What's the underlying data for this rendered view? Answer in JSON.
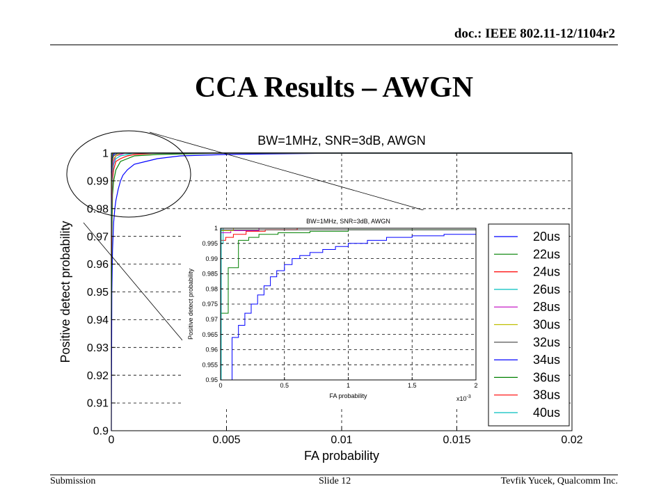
{
  "header": {
    "doc": "doc.: IEEE 802.11-12/1104r2"
  },
  "slide": {
    "title": "CCA Results – AWGN"
  },
  "footer": {
    "left": "Submission",
    "center": "Slide 12",
    "right": "Tevfik Yucek, Qualcomm Inc."
  },
  "colors": {
    "20us": "#0000ff",
    "22us": "#008000",
    "24us": "#ff0000",
    "26us": "#00bfbf",
    "28us": "#bf00bf",
    "30us": "#bfbf00",
    "32us": "#404040",
    "34us": "#0000ff",
    "36us": "#008000",
    "38us": "#ff0000",
    "40us": "#00bfbf"
  },
  "chart_data": [
    {
      "type": "line",
      "title": "BW=1MHz, SNR=3dB, AWGN",
      "xlabel": "FA probability",
      "ylabel": "Positive detect probability",
      "xlim": [
        0,
        0.02
      ],
      "ylim": [
        0.9,
        1
      ],
      "xticks": [
        "0",
        "0.005",
        "0.01",
        "0.015",
        "0.02"
      ],
      "yticks": [
        "0.9",
        "0.91",
        "0.92",
        "0.93",
        "0.94",
        "0.95",
        "0.96",
        "0.97",
        "0.98",
        "0.99",
        "1"
      ],
      "grid": true,
      "legend": "right",
      "series": [
        {
          "name": "20us",
          "x": [
            0,
            2e-05,
            5e-05,
            0.0001,
            0.00015,
            0.0002,
            0.0003,
            0.0004,
            0.0005,
            0.0007,
            0.001,
            0.0015,
            0.002,
            0.003,
            0.005,
            0.01,
            0.02
          ],
          "y": [
            0.9,
            0.95,
            0.965,
            0.975,
            0.98,
            0.983,
            0.987,
            0.99,
            0.992,
            0.994,
            0.996,
            0.997,
            0.998,
            0.999,
            0.9995,
            1,
            1
          ]
        },
        {
          "name": "22us",
          "x": [
            0,
            2e-05,
            5e-05,
            0.0001,
            0.0002,
            0.0004,
            0.0007,
            0.001,
            0.002,
            0.005,
            0.02
          ],
          "y": [
            0.94,
            0.97,
            0.985,
            0.99,
            0.994,
            0.997,
            0.998,
            0.999,
            0.9995,
            1,
            1
          ]
        },
        {
          "name": "24us",
          "x": [
            0,
            2e-05,
            5e-05,
            0.0001,
            0.0002,
            0.0004,
            0.0007,
            0.001,
            0.002,
            0.02
          ],
          "y": [
            0.96,
            0.98,
            0.99,
            0.994,
            0.997,
            0.998,
            0.999,
            0.9995,
            1,
            1
          ]
        },
        {
          "name": "26us",
          "x": [
            0,
            2e-05,
            5e-05,
            0.0001,
            0.0002,
            0.0004,
            0.0007,
            0.001,
            0.02
          ],
          "y": [
            0.97,
            0.985,
            0.993,
            0.996,
            0.998,
            0.999,
            0.9995,
            1,
            1
          ]
        },
        {
          "name": "28us",
          "x": [
            0,
            2e-05,
            5e-05,
            0.0001,
            0.0002,
            0.0004,
            0.0006,
            0.02
          ],
          "y": [
            0.98,
            0.99,
            0.995,
            0.997,
            0.999,
            0.9995,
            1,
            1
          ]
        },
        {
          "name": "30us",
          "x": [
            0,
            2e-05,
            5e-05,
            0.0001,
            0.0002,
            0.0004,
            0.02
          ],
          "y": [
            0.985,
            0.993,
            0.997,
            0.998,
            0.999,
            1,
            1
          ]
        },
        {
          "name": "32us",
          "x": [
            0,
            2e-05,
            5e-05,
            0.0001,
            0.0002,
            0.0003,
            0.02
          ],
          "y": [
            0.99,
            0.995,
            0.998,
            0.999,
            0.9995,
            1,
            1
          ]
        },
        {
          "name": "34us",
          "x": [
            0,
            2e-05,
            5e-05,
            0.0001,
            0.0002,
            0.02
          ],
          "y": [
            0.993,
            0.997,
            0.999,
            0.9995,
            1,
            1
          ]
        },
        {
          "name": "36us",
          "x": [
            0,
            2e-05,
            5e-05,
            0.0001,
            0.02
          ],
          "y": [
            0.995,
            0.998,
            0.9995,
            1,
            1
          ]
        },
        {
          "name": "38us",
          "x": [
            0,
            2e-05,
            5e-05,
            0.02
          ],
          "y": [
            0.997,
            0.999,
            1,
            1
          ]
        },
        {
          "name": "40us",
          "x": [
            0,
            2e-05,
            0.02
          ],
          "y": [
            0.998,
            1,
            1
          ]
        }
      ]
    },
    {
      "type": "line",
      "title": "BW=1MHz, SNR=3dB, AWGN",
      "xlabel": "FA probability",
      "ylabel": "Positive detect probability",
      "xlim": [
        0,
        2
      ],
      "x_multiplier": "x10",
      "x_multiplier_exp": "-3",
      "ylim": [
        0.95,
        1
      ],
      "xticks": [
        "0",
        "0.5",
        "1",
        "1.5",
        "2"
      ],
      "yticks": [
        "0.95",
        "0.955",
        "0.96",
        "0.965",
        "0.97",
        "0.975",
        "0.98",
        "0.985",
        "0.99",
        "0.995",
        "1"
      ],
      "grid": true,
      "series": [
        {
          "name": "20us",
          "x": [
            0,
            0.09,
            0.09,
            0.14,
            0.14,
            0.19,
            0.19,
            0.24,
            0.24,
            0.29,
            0.29,
            0.34,
            0.34,
            0.39,
            0.39,
            0.44,
            0.44,
            0.5,
            0.5,
            0.56,
            0.56,
            0.62,
            0.62,
            0.7,
            0.7,
            0.8,
            0.8,
            0.9,
            0.9,
            1.0,
            1.0,
            1.15,
            1.15,
            1.3,
            1.3,
            1.5,
            1.5,
            1.75,
            1.75,
            2.0
          ],
          "y": [
            0.95,
            0.95,
            0.964,
            0.964,
            0.968,
            0.968,
            0.972,
            0.972,
            0.975,
            0.975,
            0.978,
            0.978,
            0.981,
            0.981,
            0.984,
            0.984,
            0.986,
            0.986,
            0.988,
            0.988,
            0.99,
            0.99,
            0.991,
            0.991,
            0.992,
            0.992,
            0.993,
            0.993,
            0.994,
            0.994,
            0.995,
            0.995,
            0.996,
            0.996,
            0.997,
            0.997,
            0.9975,
            0.9975,
            0.998,
            0.998
          ]
        },
        {
          "name": "22us",
          "x": [
            0,
            0.06,
            0.06,
            0.14,
            0.14,
            0.22,
            0.22,
            0.3,
            0.3,
            0.45,
            0.45,
            0.7,
            0.7,
            1.0,
            1.0,
            2.0
          ],
          "y": [
            0.972,
            0.972,
            0.987,
            0.987,
            0.996,
            0.996,
            0.997,
            0.997,
            0.998,
            0.998,
            0.9985,
            0.9985,
            0.999,
            0.999,
            0.9995,
            0.9995
          ]
        },
        {
          "name": "24us",
          "x": [
            0,
            0.04,
            0.04,
            0.1,
            0.1,
            0.2,
            0.2,
            0.35,
            0.35,
            0.6,
            0.6,
            2.0
          ],
          "y": [
            0.996,
            0.996,
            0.997,
            0.997,
            0.998,
            0.998,
            0.999,
            0.999,
            0.9995,
            0.9995,
            1,
            1
          ]
        },
        {
          "name": "26us",
          "x": [
            0,
            0.02,
            0.02,
            2.0
          ],
          "y": [
            0.995,
            0.995,
            1,
            1
          ]
        },
        {
          "name": "28us",
          "x": [
            0,
            0.08,
            0.08,
            0.3,
            0.3,
            2.0
          ],
          "y": [
            0.9985,
            0.9985,
            0.9992,
            0.9992,
            1,
            1
          ]
        },
        {
          "name": "30us",
          "x": [
            0,
            0.1,
            0.1,
            2.0
          ],
          "y": [
            0.9992,
            0.9992,
            1,
            1
          ]
        },
        {
          "name": "32us",
          "x": [
            0,
            2.0
          ],
          "y": [
            0.9995,
            0.9995
          ]
        },
        {
          "name": "34us",
          "x": [
            0,
            2.0
          ],
          "y": [
            1,
            1
          ]
        },
        {
          "name": "36us",
          "x": [
            0,
            2.0
          ],
          "y": [
            1,
            1
          ]
        },
        {
          "name": "38us",
          "x": [
            0,
            2.0
          ],
          "y": [
            1,
            1
          ]
        },
        {
          "name": "40us",
          "x": [
            0,
            0.005,
            0.005,
            2.0
          ],
          "y": [
            0.95,
            0.95,
            1,
            1
          ]
        }
      ]
    }
  ]
}
